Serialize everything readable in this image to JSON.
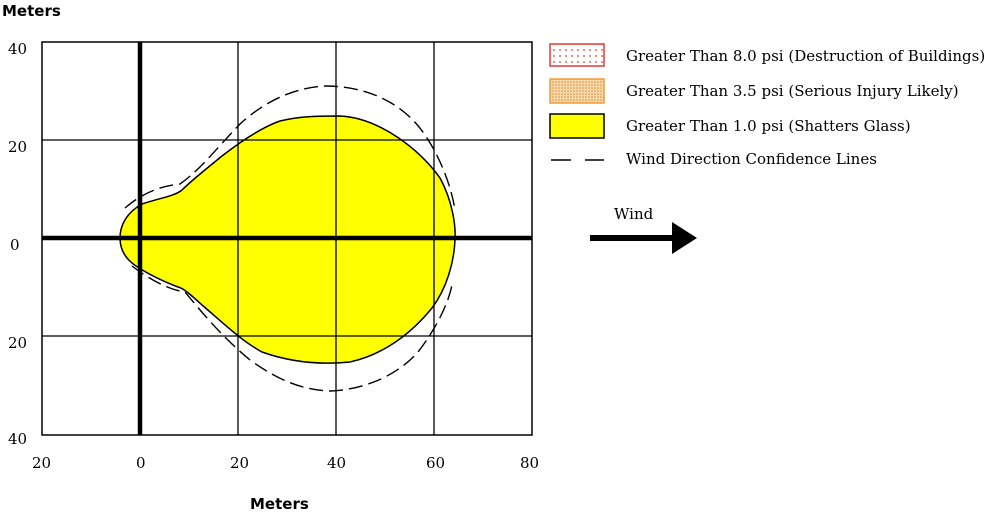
{
  "chart_data": {
    "type": "diagram",
    "xlabel": "Meters",
    "ylabel": "Meters",
    "x_ticks": [
      "20",
      "0",
      "20",
      "40",
      "60",
      "80"
    ],
    "y_ticks": [
      "40",
      "20",
      "0",
      "20",
      "40"
    ],
    "grid": true,
    "legend_placement": "right",
    "legend": [
      {
        "label": "Greater Than 8.0 psi (Destruction of Buildings)",
        "swatch": "dotted",
        "color": "#e53935"
      },
      {
        "label": "Greater Than 3.5 psi (Serious Injury Likely)",
        "swatch": "stippled",
        "color": "#f09b39"
      },
      {
        "label": "Greater Than 1.0 psi (Shatters Glass)",
        "swatch": "solid",
        "color": "#ffff00"
      },
      {
        "label": "Wind Direction Confidence Lines",
        "swatch": "dashed",
        "color": "#000000"
      }
    ],
    "wind_label": "Wind"
  }
}
